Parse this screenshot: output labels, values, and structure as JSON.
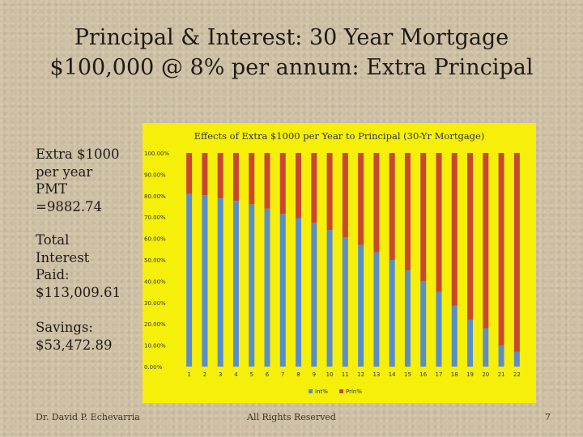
{
  "slide": {
    "title_line1": "Principal & Interest: 30 Year Mortgage",
    "title_line2": "$100,000 @ 8% per annum: Extra Principal",
    "left_blocks": [
      {
        "lines": [
          "Extra $1000",
          "per year",
          "PMT",
          "=9882.74"
        ]
      },
      {
        "lines": [
          "Total",
          "Interest",
          "Paid:",
          "$113,009.61"
        ]
      },
      {
        "lines": [
          "Savings:",
          "$53,472.89"
        ]
      }
    ],
    "footer_left": "Dr. David P. Echevarria",
    "footer_center": "All Rights Reserved",
    "page_number": "7"
  },
  "colors": {
    "chart_background": "#f5ef0a",
    "interest": "#5b8ec8",
    "principal": "#c9472e"
  },
  "chart_data": {
    "type": "bar",
    "stacked": true,
    "title": "Effects of Extra $1000 per Year to Principal (30-Yr Mortgage)",
    "categories": [
      "1",
      "2",
      "3",
      "4",
      "5",
      "6",
      "7",
      "8",
      "9",
      "10",
      "11",
      "12",
      "13",
      "14",
      "15",
      "16",
      "17",
      "18",
      "19",
      "20",
      "21",
      "22"
    ],
    "ylim": [
      0,
      100
    ],
    "yticks": [
      "0.00%",
      "10.00%",
      "20.00%",
      "30.00%",
      "40.00%",
      "50.00%",
      "60.00%",
      "70.00%",
      "80.00%",
      "90.00%",
      "100.00%"
    ],
    "series": [
      {
        "name": "Int%",
        "values": [
          80.9,
          80.2,
          78.8,
          77.6,
          76.0,
          74.0,
          71.5,
          69.5,
          67.3,
          64.0,
          60.5,
          57.0,
          53.5,
          50.0,
          45.0,
          40.0,
          35.0,
          28.5,
          22.0,
          18.0,
          10.0,
          7.0
        ]
      },
      {
        "name": "Prin%",
        "values": [
          19.1,
          19.8,
          21.2,
          22.4,
          24.0,
          26.0,
          28.5,
          30.5,
          32.7,
          36.0,
          39.5,
          43.0,
          46.5,
          50.0,
          55.0,
          60.0,
          65.0,
          71.5,
          78.0,
          82.0,
          90.0,
          93.0
        ]
      }
    ],
    "legend_position": "bottom",
    "grid": false
  }
}
